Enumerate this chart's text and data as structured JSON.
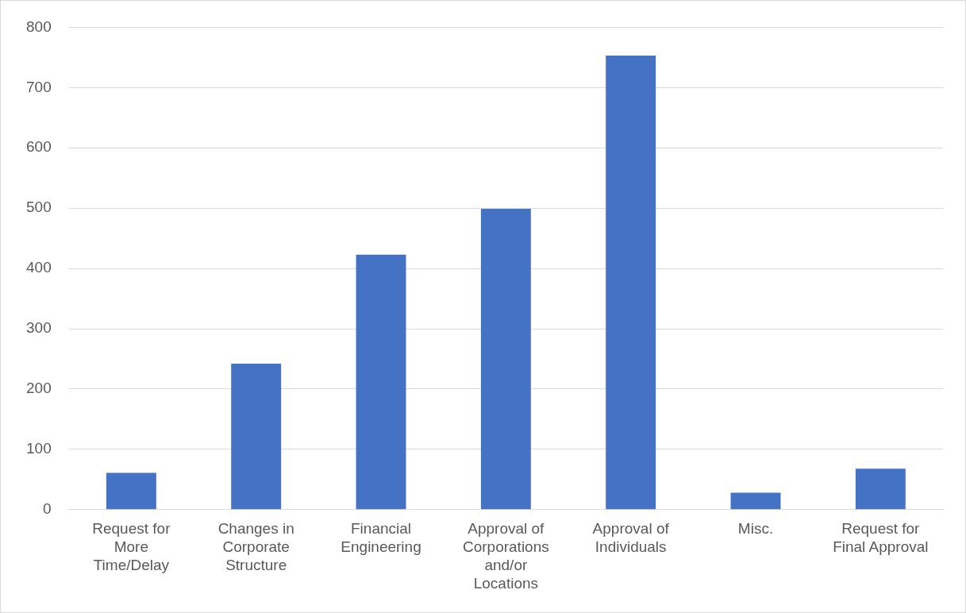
{
  "chart_data": {
    "type": "bar",
    "categories": [
      "Request for More Time/Delay",
      "Changes in Corporate Structure",
      "Financial Engineering",
      "Approval of Corporations and/or Locations",
      "Approval of Individuals",
      "Misc.",
      "Request for Final Approval"
    ],
    "values": [
      61,
      242,
      423,
      499,
      753,
      28,
      68
    ],
    "color": "#4472c4",
    "ylim": [
      0,
      800
    ],
    "yticks": [
      0,
      100,
      200,
      300,
      400,
      500,
      600,
      700,
      800
    ],
    "grid": "y",
    "legend": false
  }
}
